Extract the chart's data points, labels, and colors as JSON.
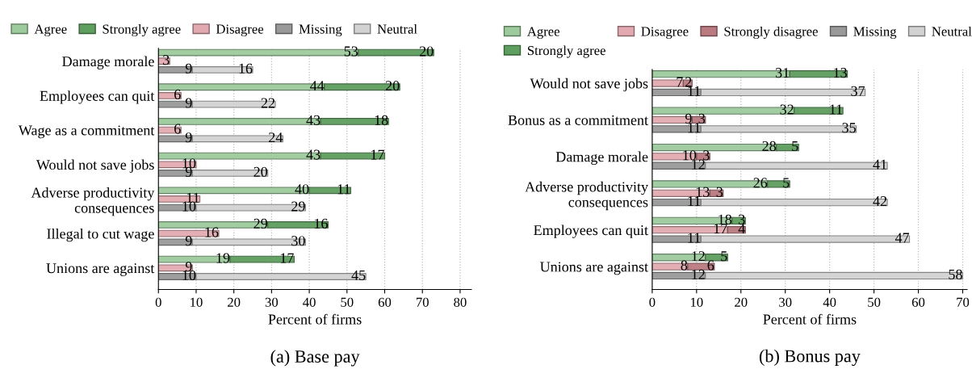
{
  "chart_data": [
    {
      "type": "bar",
      "orientation": "horizontal",
      "stacked": true,
      "title": "(a) Base pay",
      "xlabel": "Percent of firms",
      "categories": [
        null,
        "Damage morale",
        null,
        null,
        null,
        "Employees can quit",
        null,
        null,
        null,
        "Wage as a commitment",
        null,
        null,
        null,
        "Would not save jobs",
        null,
        null,
        null,
        "Adverse productivity\nconsequences",
        null,
        null,
        null,
        "Illegal to cut wage",
        null,
        null,
        null,
        "Unions are against",
        null,
        null
      ],
      "series": [
        {
          "name": "Agree",
          "color": "#9dcb9d",
          "values": [
            53,
            null,
            null,
            null,
            44,
            null,
            null,
            null,
            43,
            null,
            null,
            null,
            43,
            null,
            null,
            null,
            40,
            null,
            null,
            null,
            29,
            null,
            null,
            null,
            19,
            null,
            null,
            null
          ]
        },
        {
          "name": "Strongly agree",
          "color": "#5e9e5e",
          "values": [
            20,
            null,
            null,
            null,
            20,
            null,
            null,
            null,
            18,
            null,
            null,
            null,
            17,
            null,
            null,
            null,
            11,
            null,
            null,
            null,
            16,
            null,
            null,
            null,
            17,
            null,
            null,
            null
          ]
        },
        {
          "name": "Disagree",
          "color": "#e2aab0",
          "values": [
            null,
            3,
            null,
            null,
            null,
            6,
            null,
            null,
            null,
            6,
            null,
            null,
            null,
            10,
            null,
            null,
            null,
            11,
            null,
            null,
            null,
            16,
            null,
            null,
            null,
            9,
            null,
            null
          ]
        },
        {
          "name": "Missing",
          "color": "#999999",
          "values": [
            null,
            null,
            9,
            null,
            null,
            null,
            9,
            null,
            null,
            null,
            9,
            null,
            null,
            null,
            9,
            null,
            null,
            null,
            10,
            null,
            null,
            null,
            9,
            null,
            null,
            null,
            10,
            null
          ]
        },
        {
          "name": "Neutral",
          "color": "#d2d2d2",
          "values": [
            null,
            null,
            16,
            null,
            null,
            null,
            22,
            null,
            null,
            null,
            24,
            null,
            null,
            null,
            20,
            null,
            null,
            null,
            29,
            null,
            null,
            null,
            30,
            null,
            null,
            null,
            45,
            null
          ]
        }
      ],
      "xlim": [
        0,
        83
      ],
      "xticks": [
        0,
        10,
        20,
        30,
        40,
        50,
        60,
        70,
        80
      ],
      "grid": "x",
      "legend": "top",
      "data_labels": true
    },
    {
      "type": "bar",
      "orientation": "horizontal",
      "stacked": true,
      "title": "(b) Bonus pay",
      "xlabel": "Percent of firms",
      "categories": [
        null,
        "Would not save jobs",
        null,
        null,
        null,
        "Bonus as a commitment",
        null,
        null,
        null,
        "Damage morale",
        null,
        null,
        null,
        "Adverse productivity\nconsequences",
        null,
        null,
        null,
        "Employees can quit",
        null,
        null,
        null,
        "Unions are against",
        null,
        null
      ],
      "series": [
        {
          "name": "Agree",
          "color": "#9dcb9d",
          "values": [
            31,
            null,
            null,
            null,
            32,
            null,
            null,
            null,
            28,
            null,
            null,
            null,
            26,
            null,
            null,
            null,
            18,
            null,
            null,
            null,
            12,
            null,
            null,
            null
          ]
        },
        {
          "name": "Strongly agree",
          "color": "#5e9e5e",
          "values": [
            13,
            null,
            null,
            null,
            11,
            null,
            null,
            null,
            5,
            null,
            null,
            null,
            5,
            null,
            null,
            null,
            3,
            null,
            null,
            null,
            5,
            null,
            null,
            null
          ]
        },
        {
          "name": "Disagree",
          "color": "#e2aab0",
          "values": [
            null,
            7,
            null,
            null,
            null,
            9,
            null,
            null,
            null,
            10,
            null,
            null,
            null,
            13,
            null,
            null,
            null,
            17,
            null,
            null,
            null,
            8,
            null,
            null
          ]
        },
        {
          "name": "Strongly disagree",
          "color": "#b97a80",
          "values": [
            null,
            2,
            null,
            null,
            null,
            3,
            null,
            null,
            null,
            3,
            null,
            null,
            null,
            3,
            null,
            null,
            null,
            4,
            null,
            null,
            null,
            6,
            null,
            null
          ]
        },
        {
          "name": "Missing",
          "color": "#999999",
          "values": [
            null,
            null,
            11,
            null,
            null,
            null,
            11,
            null,
            null,
            null,
            12,
            null,
            null,
            null,
            11,
            null,
            null,
            null,
            11,
            null,
            null,
            null,
            12,
            null
          ]
        },
        {
          "name": "Neutral",
          "color": "#d2d2d2",
          "values": [
            null,
            null,
            37,
            null,
            null,
            null,
            35,
            null,
            null,
            null,
            41,
            null,
            null,
            null,
            42,
            null,
            null,
            null,
            47,
            null,
            null,
            null,
            58,
            null
          ]
        }
      ],
      "xlim": [
        0,
        71
      ],
      "xticks": [
        0,
        10,
        20,
        30,
        40,
        50,
        60,
        70
      ],
      "grid": "x",
      "legend": "top",
      "data_labels": true
    }
  ]
}
